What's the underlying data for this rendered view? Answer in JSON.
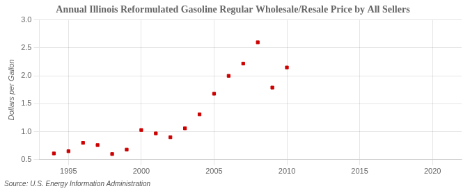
{
  "chart_data": {
    "type": "scatter",
    "title": "Annual Illinois Reformulated Gasoline Regular Wholesale/Resale Price by All Sellers",
    "ylabel": "Dollars per Gallon",
    "annotations": [
      "Source: U.S. Energy Information Administration"
    ],
    "x": [
      1994,
      1995,
      1996,
      1997,
      1998,
      1999,
      2000,
      2001,
      2002,
      2003,
      2004,
      2005,
      2006,
      2007,
      2008,
      2009,
      2010
    ],
    "values": [
      0.61,
      0.65,
      0.8,
      0.76,
      0.6,
      0.68,
      1.03,
      0.97,
      0.9,
      1.06,
      1.31,
      1.68,
      2.0,
      2.22,
      2.6,
      1.79,
      2.15
    ],
    "color": "#cc0000",
    "marker": "square",
    "xlim": [
      1993.0,
      2022.0
    ],
    "xticks": [
      1995,
      2000,
      2005,
      2010,
      2015,
      2020
    ],
    "ylim": [
      0.5,
      3.0
    ],
    "yticks": [
      0.5,
      {
        "value": 1.0,
        "label": "1.0"
      },
      1.5,
      {
        "value": 2.0,
        "label": "2.0"
      },
      2.5,
      {
        "value": 3.0,
        "label": "3.0"
      }
    ],
    "grid": true
  }
}
